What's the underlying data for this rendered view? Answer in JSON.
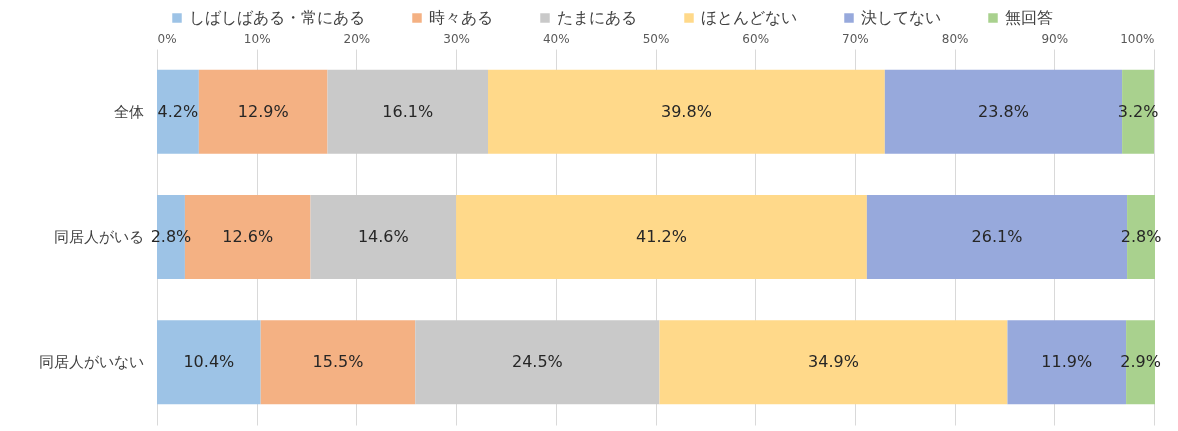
{
  "chart_data": {
    "type": "bar",
    "orientation": "horizontal",
    "stacked": true,
    "categories": [
      "全体",
      "同居人がいる",
      "同居人がいない"
    ],
    "series": [
      {
        "name": "しばしばある・常にある",
        "color": "#9dc3e6",
        "values": [
          4.2,
          2.8,
          10.4
        ],
        "value_labels": [
          "4.2%",
          "2.8%",
          "10.4%"
        ]
      },
      {
        "name": "時々ある",
        "color": "#f4b183",
        "values": [
          12.9,
          12.6,
          15.5
        ],
        "value_labels": [
          "12.9%",
          "12.6%",
          "15.5%"
        ]
      },
      {
        "name": "たまにある",
        "color": "#c9c9c9",
        "values": [
          16.1,
          14.6,
          24.5
        ],
        "value_labels": [
          "16.1%",
          "14.6%",
          "24.5%"
        ]
      },
      {
        "name": "ほとんどない",
        "color": "#ffd98a",
        "values": [
          39.8,
          41.2,
          34.9
        ],
        "value_labels": [
          "39.8%",
          "41.2%",
          "34.9%"
        ]
      },
      {
        "name": "決してない",
        "color": "#97a9dc",
        "values": [
          23.8,
          26.1,
          11.9
        ],
        "value_labels": [
          "23.8%",
          "26.1%",
          "11.9%"
        ]
      },
      {
        "name": "無回答",
        "color": "#a9d18e",
        "values": [
          3.2,
          2.8,
          2.9
        ],
        "value_labels": [
          "3.2%",
          "2.8%",
          "2.9%"
        ]
      }
    ],
    "xlim": [
      0,
      100
    ],
    "xticks": [
      {
        "value": 0,
        "label": "0%"
      },
      {
        "value": 10,
        "label": "10%"
      },
      {
        "value": 20,
        "label": "20%"
      },
      {
        "value": 30,
        "label": "30%"
      },
      {
        "value": 40,
        "label": "40%"
      },
      {
        "value": 50,
        "label": "50%"
      },
      {
        "value": 60,
        "label": "60%"
      },
      {
        "value": 70,
        "label": "70%"
      },
      {
        "value": 80,
        "label": "80%"
      },
      {
        "value": 90,
        "label": "90%"
      },
      {
        "value": 100,
        "label": "100%"
      }
    ],
    "grid": "x",
    "legend": "top"
  }
}
